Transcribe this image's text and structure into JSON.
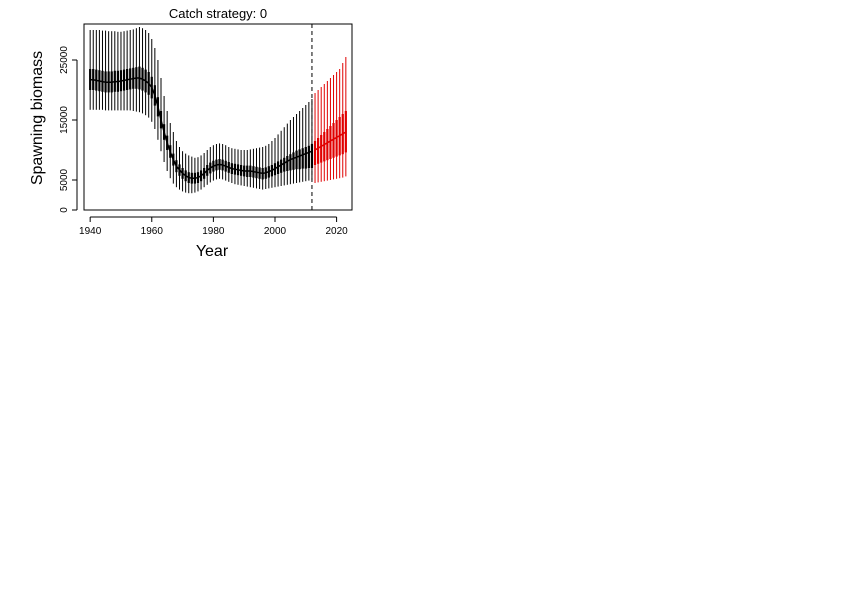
{
  "chart_data": {
    "type": "line",
    "title": "Catch strategy: 0",
    "xlabel": "Year",
    "ylabel": "Spawning biomass",
    "xlim": [
      1938,
      2025
    ],
    "ylim": [
      0,
      31000
    ],
    "x_ticks": [
      1940,
      1960,
      1980,
      2000,
      2020
    ],
    "y_ticks": [
      0,
      5000,
      15000,
      25000
    ],
    "y_tick_labels_rotated": true,
    "grid": false,
    "vline": {
      "x": 2012,
      "style": "dashed",
      "color": "#000000"
    },
    "series": [
      {
        "color": "#000000",
        "years": [
          1940,
          1941,
          1942,
          1943,
          1944,
          1945,
          1946,
          1947,
          1948,
          1949,
          1950,
          1951,
          1952,
          1953,
          1954,
          1955,
          1956,
          1957,
          1958,
          1959,
          1960,
          1961,
          1962,
          1963,
          1964,
          1965,
          1966,
          1967,
          1968,
          1969,
          1970,
          1971,
          1972,
          1973,
          1974,
          1975,
          1976,
          1977,
          1978,
          1979,
          1980,
          1981,
          1982,
          1983,
          1984,
          1985,
          1986,
          1987,
          1988,
          1989,
          1990,
          1991,
          1992,
          1993,
          1994,
          1995,
          1996,
          1997,
          1998,
          1999,
          2000,
          2001,
          2002,
          2003,
          2004,
          2005,
          2006,
          2007,
          2008,
          2009,
          2010,
          2011,
          2012
        ],
        "outer_upper": [
          30000,
          30000,
          30000,
          30000,
          29900,
          29900,
          29800,
          29800,
          29800,
          29700,
          29700,
          29800,
          29900,
          30000,
          30100,
          30300,
          30500,
          30300,
          30000,
          29500,
          28500,
          27000,
          25000,
          22000,
          19000,
          16500,
          14500,
          13000,
          11500,
          10500,
          9800,
          9400,
          9100,
          8900,
          8700,
          8800,
          9100,
          9500,
          10000,
          10500,
          10800,
          11000,
          11100,
          11000,
          10800,
          10500,
          10300,
          10200,
          10100,
          10000,
          10000,
          10000,
          10100,
          10200,
          10300,
          10400,
          10500,
          10700,
          11000,
          11500,
          12000,
          12600,
          13200,
          13800,
          14400,
          15000,
          15500,
          16000,
          16500,
          17000,
          17500,
          18000,
          18500
        ],
        "inner_upper": [
          23500,
          23500,
          23400,
          23300,
          23200,
          23100,
          23100,
          23100,
          23200,
          23200,
          23300,
          23400,
          23500,
          23600,
          23700,
          23800,
          23900,
          23700,
          23400,
          23000,
          22200,
          20800,
          18800,
          16500,
          14300,
          12400,
          10800,
          9400,
          8300,
          7600,
          7000,
          6600,
          6300,
          6200,
          6200,
          6300,
          6600,
          7000,
          7500,
          7900,
          8200,
          8400,
          8500,
          8400,
          8200,
          8000,
          7800,
          7700,
          7600,
          7500,
          7400,
          7400,
          7400,
          7300,
          7200,
          7100,
          7000,
          7100,
          7300,
          7500,
          7800,
          8100,
          8400,
          8700,
          9000,
          9300,
          9600,
          9900,
          10100,
          10300,
          10500,
          10700,
          11000
        ],
        "median": [
          21700,
          21700,
          21600,
          21500,
          21400,
          21300,
          21300,
          21300,
          21400,
          21400,
          21500,
          21600,
          21700,
          21800,
          21900,
          22000,
          22000,
          21800,
          21500,
          21100,
          20400,
          19100,
          17200,
          15000,
          13000,
          11200,
          9700,
          8400,
          7300,
          6700,
          6100,
          5700,
          5400,
          5300,
          5300,
          5400,
          5700,
          6100,
          6600,
          7000,
          7300,
          7500,
          7600,
          7500,
          7300,
          7100,
          6900,
          6800,
          6700,
          6600,
          6500,
          6500,
          6500,
          6400,
          6300,
          6200,
          6100,
          6200,
          6400,
          6600,
          6900,
          7200,
          7500,
          7800,
          8100,
          8400,
          8600,
          8800,
          9000,
          9200,
          9400,
          9600,
          9800
        ],
        "inner_lower": [
          20000,
          20000,
          19900,
          19800,
          19700,
          19600,
          19600,
          19600,
          19700,
          19700,
          19800,
          19900,
          20000,
          20100,
          20200,
          20200,
          20100,
          19900,
          19600,
          19200,
          18600,
          17400,
          15600,
          13600,
          11700,
          10000,
          8700,
          7400,
          6300,
          5700,
          5200,
          4800,
          4500,
          4400,
          4400,
          4500,
          4800,
          5200,
          5700,
          6100,
          6400,
          6600,
          6700,
          6600,
          6400,
          6200,
          6000,
          5900,
          5800,
          5700,
          5600,
          5500,
          5500,
          5400,
          5300,
          5200,
          5100,
          5200,
          5400,
          5600,
          5800,
          6000,
          6200,
          6400,
          6500,
          6600,
          6700,
          6800,
          6800,
          6900,
          6900,
          7000,
          7000
        ],
        "outer_lower": [
          16700,
          16700,
          16700,
          16700,
          16700,
          16600,
          16600,
          16600,
          16600,
          16600,
          16600,
          16600,
          16600,
          16600,
          16500,
          16400,
          16300,
          16100,
          15800,
          15400,
          14700,
          13500,
          11700,
          9800,
          8000,
          6500,
          5300,
          4400,
          3800,
          3400,
          3100,
          2900,
          2800,
          2800,
          2900,
          3100,
          3400,
          3800,
          4200,
          4600,
          4900,
          5100,
          5200,
          5100,
          4900,
          4700,
          4500,
          4300,
          4200,
          4100,
          4000,
          3900,
          3800,
          3700,
          3600,
          3500,
          3400,
          3500,
          3600,
          3700,
          3800,
          3900,
          4000,
          4100,
          4200,
          4300,
          4400,
          4500,
          4600,
          4700,
          4800,
          4900,
          5000
        ]
      },
      {
        "color": "#e00000",
        "years": [
          2013,
          2014,
          2015,
          2016,
          2017,
          2018,
          2019,
          2020,
          2021,
          2022,
          2023
        ],
        "outer_upper": [
          19500,
          20000,
          20500,
          21000,
          21500,
          22000,
          22500,
          23000,
          23500,
          24500,
          25500
        ],
        "inner_upper": [
          11500,
          12000,
          12500,
          13000,
          13500,
          14000,
          14500,
          15000,
          15500,
          16000,
          16500
        ],
        "median": [
          10000,
          10300,
          10600,
          10900,
          11200,
          11500,
          11800,
          12100,
          12400,
          12700,
          13000
        ],
        "inner_lower": [
          7500,
          7700,
          7900,
          8100,
          8300,
          8500,
          8700,
          8900,
          9100,
          9300,
          9600
        ],
        "outer_lower": [
          4500,
          4600,
          4700,
          4800,
          4900,
          5000,
          5100,
          5200,
          5300,
          5400,
          5600
        ]
      }
    ]
  }
}
